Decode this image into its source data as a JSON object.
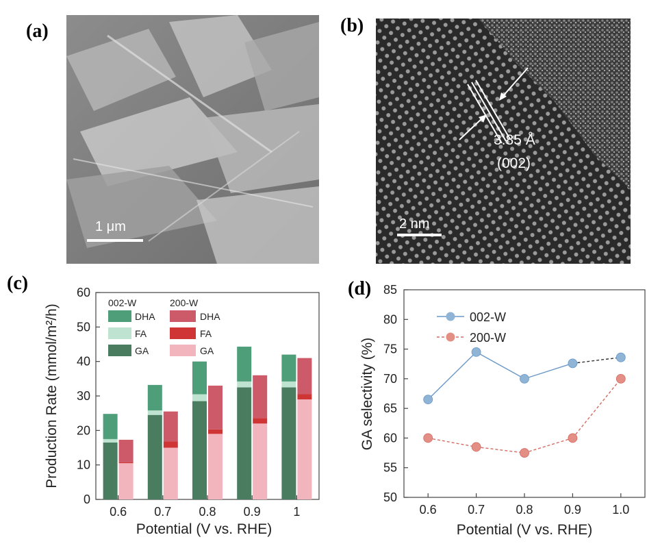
{
  "panels": {
    "a": {
      "label": "(a)",
      "scale_bar": "1 μm"
    },
    "b": {
      "label": "(b)",
      "scale_bar": "2 nm",
      "d_spacing": "3.85 Å",
      "plane": "(002)"
    },
    "c": {
      "label": "(c)"
    },
    "d": {
      "label": "(d)"
    }
  },
  "chart_data": [
    {
      "type": "bar",
      "panel": "c",
      "xlabel": "Potential (V vs. RHE)",
      "ylabel": "Production Rate (mmol/m²/h)",
      "categories": [
        "0.6",
        "0.7",
        "0.8",
        "0.9",
        "1"
      ],
      "ylim": [
        0,
        60
      ],
      "yticks": [
        "0",
        "10",
        "20",
        "30",
        "40",
        "50",
        "60"
      ],
      "legend_groups": [
        "002-W",
        "200-W"
      ],
      "legend_items": [
        "DHA",
        "FA",
        "GA"
      ],
      "stacked_groups": [
        {
          "name": "002-W",
          "colors": {
            "GA": "#4a7d60",
            "FA": "#bfe3d1",
            "DHA": "#4e9f79"
          },
          "series": [
            {
              "name": "GA",
              "values": [
                16.5,
                24.5,
                28.5,
                32.5,
                32.5
              ]
            },
            {
              "name": "FA",
              "values": [
                1.0,
                1.3,
                2.0,
                1.7,
                1.7
              ]
            },
            {
              "name": "DHA",
              "values": [
                7.3,
                7.4,
                9.5,
                10.1,
                7.8
              ]
            }
          ]
        },
        {
          "name": "200-W",
          "colors": {
            "GA": "#f2b5bd",
            "FA": "#cf3535",
            "DHA": "#cd5a69"
          },
          "series": [
            {
              "name": "GA",
              "values": [
                10.5,
                15.0,
                19.0,
                22.0,
                29.0
              ]
            },
            {
              "name": "FA",
              "values": [
                0.3,
                1.8,
                1.3,
                1.6,
                1.5
              ]
            },
            {
              "name": "DHA",
              "values": [
                6.5,
                8.7,
                12.7,
                12.4,
                10.5
              ]
            }
          ]
        }
      ]
    },
    {
      "type": "line",
      "panel": "d",
      "xlabel": "Potential (V vs. RHE)",
      "ylabel": "GA selectivity (%)",
      "x": [
        0.6,
        0.7,
        0.8,
        0.9,
        1.0
      ],
      "xticks": [
        "0.6",
        "0.7",
        "0.8",
        "0.9",
        "1.0"
      ],
      "ylim": [
        50,
        85
      ],
      "yticks": [
        "50",
        "55",
        "60",
        "65",
        "70",
        "75",
        "80",
        "85"
      ],
      "legend": "top-left",
      "series": [
        {
          "name": "002-W",
          "values": [
            66.5,
            74.5,
            70.0,
            72.6,
            73.6
          ],
          "color": "#8fb4d6",
          "line": "#6a98c8"
        },
        {
          "name": "200-W",
          "values": [
            60.0,
            58.5,
            57.5,
            60.0,
            70.0
          ],
          "color": "#e48f86",
          "line": "#d46a60"
        }
      ]
    }
  ]
}
